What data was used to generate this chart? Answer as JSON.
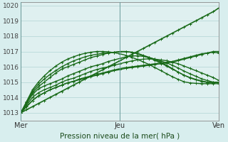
{
  "title": "Pression niveau de la mer( hPa )",
  "bg_color": "#d8eeee",
  "plot_bg_color": "#dff0f0",
  "grid_color": "#b0d4d4",
  "line_color": "#1a6b1a",
  "x_ticks": [
    0,
    48,
    96
  ],
  "x_tick_labels": [
    "Mer",
    "Jeu",
    "Ven"
  ],
  "ylim": [
    1012.5,
    1020.2
  ],
  "yticks": [
    1013,
    1014,
    1015,
    1016,
    1017,
    1018,
    1019,
    1020
  ],
  "series": [
    [
      1013.0,
      1013.4,
      1013.8,
      1014.1,
      1014.3,
      1014.5,
      1014.65,
      1014.8,
      1014.95,
      1015.05,
      1015.15,
      1015.25,
      1015.35,
      1015.45,
      1015.55,
      1015.65,
      1015.75,
      1015.82,
      1015.9,
      1015.95,
      1016.0,
      1016.05,
      1016.1,
      1016.15,
      1016.2,
      1016.25,
      1016.3,
      1016.4,
      1016.5,
      1016.6,
      1016.7,
      1016.8,
      1016.9,
      1017.0,
      1017.0
    ],
    [
      1013.0,
      1013.4,
      1013.8,
      1014.1,
      1014.3,
      1014.5,
      1014.65,
      1014.8,
      1014.95,
      1015.05,
      1015.2,
      1015.3,
      1015.4,
      1015.5,
      1015.6,
      1015.7,
      1015.8,
      1015.88,
      1015.95,
      1016.0,
      1016.05,
      1016.1,
      1016.15,
      1016.2,
      1016.25,
      1016.3,
      1016.35,
      1016.45,
      1016.55,
      1016.65,
      1016.75,
      1016.85,
      1016.9,
      1016.95,
      1016.9
    ],
    [
      1013.0,
      1013.5,
      1014.0,
      1014.3,
      1014.5,
      1014.65,
      1014.8,
      1015.0,
      1015.15,
      1015.25,
      1015.4,
      1015.55,
      1015.7,
      1015.82,
      1015.92,
      1016.0,
      1016.1,
      1016.2,
      1016.3,
      1016.38,
      1016.45,
      1016.5,
      1016.52,
      1016.5,
      1016.45,
      1016.4,
      1016.3,
      1016.2,
      1016.05,
      1015.9,
      1015.75,
      1015.6,
      1015.45,
      1015.3,
      1015.1
    ],
    [
      1013.0,
      1013.6,
      1014.2,
      1014.55,
      1014.75,
      1014.9,
      1015.05,
      1015.2,
      1015.4,
      1015.55,
      1015.7,
      1015.85,
      1016.0,
      1016.1,
      1016.2,
      1016.35,
      1016.45,
      1016.55,
      1016.65,
      1016.7,
      1016.72,
      1016.68,
      1016.6,
      1016.5,
      1016.38,
      1016.25,
      1016.1,
      1015.92,
      1015.72,
      1015.55,
      1015.38,
      1015.22,
      1015.1,
      1015.0,
      1015.0
    ],
    [
      1013.0,
      1013.7,
      1014.3,
      1014.7,
      1015.0,
      1015.3,
      1015.6,
      1015.85,
      1016.0,
      1016.15,
      1016.3,
      1016.45,
      1016.6,
      1016.7,
      1016.8,
      1016.9,
      1016.95,
      1017.0,
      1017.0,
      1016.95,
      1016.85,
      1016.72,
      1016.58,
      1016.42,
      1016.25,
      1016.05,
      1015.85,
      1015.65,
      1015.45,
      1015.3,
      1015.18,
      1015.08,
      1015.0,
      1014.98,
      1015.0
    ],
    [
      1013.0,
      1013.7,
      1014.4,
      1014.85,
      1015.2,
      1015.5,
      1015.75,
      1016.0,
      1016.2,
      1016.38,
      1016.52,
      1016.65,
      1016.75,
      1016.82,
      1016.88,
      1016.92,
      1016.95,
      1016.98,
      1016.98,
      1016.95,
      1016.88,
      1016.75,
      1016.62,
      1016.48,
      1016.3,
      1016.1,
      1015.88,
      1015.65,
      1015.45,
      1015.28,
      1015.15,
      1015.05,
      1014.98,
      1014.95,
      1015.0
    ],
    [
      1013.0,
      1013.75,
      1014.5,
      1015.0,
      1015.4,
      1015.75,
      1016.05,
      1016.3,
      1016.5,
      1016.65,
      1016.78,
      1016.88,
      1016.95,
      1017.0,
      1017.0,
      1016.98,
      1016.92,
      1016.85,
      1016.75,
      1016.62,
      1016.48,
      1016.32,
      1016.15,
      1015.95,
      1015.75,
      1015.55,
      1015.35,
      1015.18,
      1015.02,
      1014.95,
      1014.92,
      1014.9,
      1014.9,
      1014.9,
      1014.9
    ]
  ],
  "series_straight": [
    1013.0,
    1013.2,
    1013.4,
    1013.6,
    1013.8,
    1014.0,
    1014.2,
    1014.4,
    1014.6,
    1014.8,
    1015.0,
    1015.2,
    1015.4,
    1015.6,
    1015.8,
    1016.0,
    1016.2,
    1016.4,
    1016.6,
    1016.8,
    1017.0,
    1017.2,
    1017.4,
    1017.6,
    1017.8,
    1018.0,
    1018.2,
    1018.4,
    1018.6,
    1018.8,
    1019.0,
    1019.2,
    1019.4,
    1019.6,
    1019.85
  ],
  "xlim": [
    0,
    96
  ],
  "marker_size": 2.5,
  "linewidth": 1.0
}
